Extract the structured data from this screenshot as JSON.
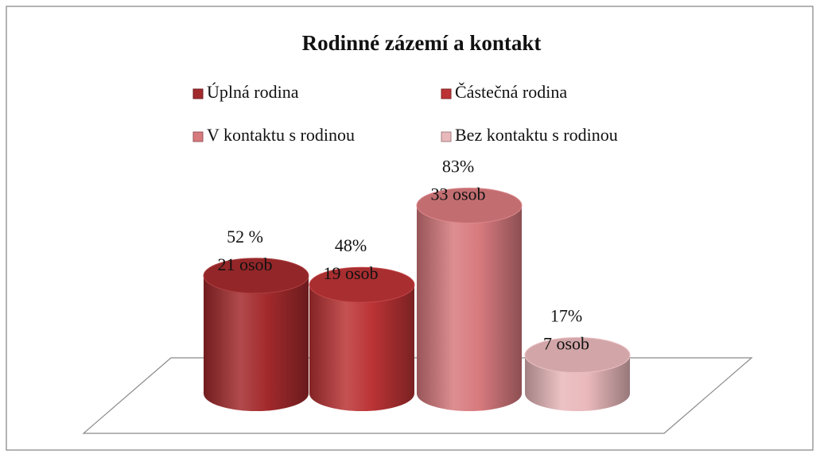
{
  "chart_data": {
    "type": "cylinder-bar",
    "title": "Rodinné zázemí a kontakt",
    "ylim": [
      0,
      100
    ],
    "series": [
      {
        "name": "Úplná rodina",
        "color": "#a32a2c",
        "values": [
          52
        ],
        "value_labels": [
          "52 %"
        ],
        "count_labels": [
          "21 osob"
        ]
      },
      {
        "name": "Částečná rodina",
        "color": "#bb3335",
        "values": [
          48
        ],
        "value_labels": [
          "48%"
        ],
        "count_labels": [
          "19 osob"
        ]
      },
      {
        "name": "V kontaktu s rodinou",
        "color": "#d77a7e",
        "values": [
          83
        ],
        "value_labels": [
          "83%"
        ],
        "count_labels": [
          "33 osob"
        ]
      },
      {
        "name": "Bez kontaktu s rodinou",
        "color": "#e9b8bb",
        "values": [
          17
        ],
        "value_labels": [
          "17%"
        ],
        "count_labels": [
          "7 osob"
        ]
      }
    ]
  }
}
